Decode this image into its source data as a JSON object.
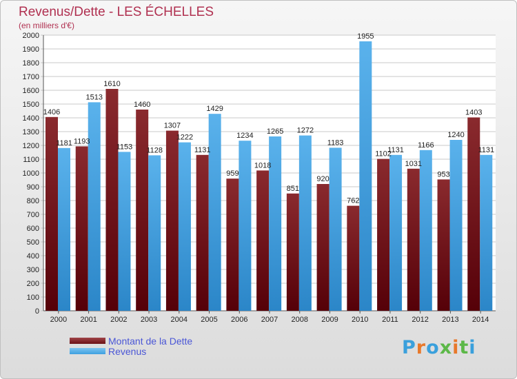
{
  "title": "Revenus/Dette - LES ÉCHELLES",
  "subtitle": "(en milliers d'€)",
  "brand": {
    "text": "Proxiti",
    "letters": [
      "P",
      "r",
      "o",
      "x",
      "i",
      "t",
      "i"
    ],
    "colors": [
      "#3aa0dc",
      "#e8782a",
      "#3aa0dc",
      "#5cb848",
      "#e8782a",
      "#5cb848",
      "#3aa0dc"
    ]
  },
  "colors": {
    "dette": "#6b1015",
    "revenus": "#3ea0e0",
    "title": "#b03050",
    "legend_text": "#4a56d6"
  },
  "chart_data": {
    "type": "bar",
    "categories": [
      "2000",
      "2001",
      "2002",
      "2003",
      "2004",
      "2005",
      "2006",
      "2007",
      "2008",
      "2009",
      "2010",
      "2011",
      "2012",
      "2013",
      "2014"
    ],
    "series": [
      {
        "name": "Montant de la Dette",
        "values": [
          1406,
          1193,
          1610,
          1460,
          1307,
          1131,
          959,
          1018,
          851,
          920,
          762,
          1102,
          1031,
          953,
          1403
        ]
      },
      {
        "name": "Revenus",
        "values": [
          1181,
          1513,
          1153,
          1128,
          1222,
          1429,
          1234,
          1265,
          1272,
          1183,
          1955,
          1131,
          1166,
          1240,
          1131
        ]
      }
    ],
    "data_labels": {
      "Montant de la Dette": [
        "1406",
        "1193",
        "1610",
        "1460",
        "1307",
        "1131",
        "959",
        "1018",
        "851",
        "920",
        "762",
        "1102",
        "1031",
        "953",
        "1403"
      ],
      "Revenus": [
        "1181",
        "1513",
        "1153",
        "1128",
        "1222",
        "1429",
        "1234",
        "1265",
        "1272",
        "1183",
        "1955",
        "1131",
        "1166",
        "1240",
        "1131"
      ]
    },
    "ylim": [
      0,
      2000
    ],
    "yticks": [
      0,
      100,
      200,
      300,
      400,
      500,
      600,
      700,
      800,
      900,
      1000,
      1100,
      1200,
      1300,
      1400,
      1500,
      1600,
      1700,
      1800,
      1900,
      2000
    ],
    "grid": true,
    "legend_position": "bottom-left"
  }
}
